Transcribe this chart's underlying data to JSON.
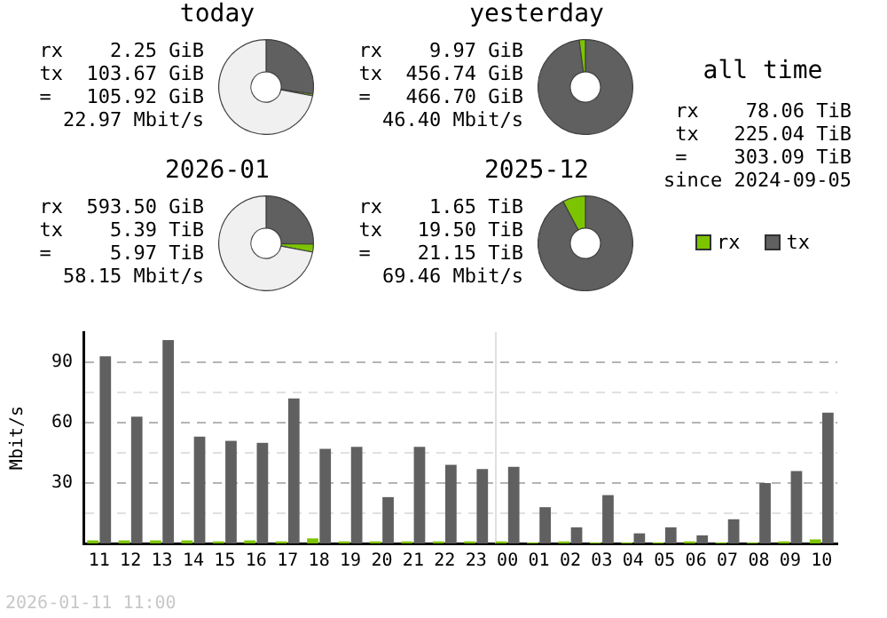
{
  "chart_data": [
    {
      "type": "donut",
      "title": "today",
      "categories": [
        null,
        null,
        null
      ],
      "values": [
        27.4,
        0.6,
        72
      ],
      "colors": [
        "#606060",
        "#7cc400",
        "#f0f0f0"
      ],
      "annotations": [
        "rx    2.25 GiB",
        "tx  103.67 GiB",
        "=   105.92 GiB",
        "22.97 Mbit/s"
      ]
    },
    {
      "type": "donut",
      "title": "yesterday",
      "categories": [
        null,
        null
      ],
      "values": [
        97.9,
        2.1
      ],
      "colors": [
        "#606060",
        "#7cc400"
      ],
      "annotations": [
        "rx    9.97 GiB",
        "tx  456.74 GiB",
        "=   466.70 GiB",
        "46.40 Mbit/s"
      ]
    },
    {
      "type": "donut",
      "title": "2026-01",
      "categories": [
        null,
        null,
        null
      ],
      "values": [
        25.3,
        2.7,
        72
      ],
      "colors": [
        "#606060",
        "#7cc400",
        "#f0f0f0"
      ],
      "annotations": [
        "rx  593.50 GiB",
        "tx    5.39 TiB",
        "=     5.97 TiB",
        "58.15 Mbit/s"
      ]
    },
    {
      "type": "donut",
      "title": "2025-12",
      "categories": [
        null,
        null
      ],
      "values": [
        92.2,
        7.8
      ],
      "colors": [
        "#606060",
        "#7cc400"
      ],
      "annotations": [
        "rx    1.65 TiB",
        "tx   19.50 TiB",
        "=    21.15 TiB",
        "69.46 Mbit/s"
      ]
    },
    {
      "type": "other",
      "title": "all time",
      "annotations": [
        "rx    78.06 TiB",
        "tx   225.04 TiB",
        "=    303.09 TiB",
        "since 2024-09-05"
      ]
    },
    {
      "type": "bar",
      "ylabel": "Mbit/s",
      "categories": [
        "11",
        "12",
        "13",
        "14",
        "15",
        "16",
        "17",
        "18",
        "19",
        "20",
        "21",
        "22",
        "23",
        "00",
        "01",
        "02",
        "03",
        "04",
        "05",
        "06",
        "07",
        "08",
        "09",
        "10"
      ],
      "series": [
        {
          "name": "rx",
          "color": "#7cc400",
          "values": [
            1.5,
            1.5,
            1.5,
            1.5,
            1,
            1.5,
            1,
            2.5,
            1,
            1,
            1,
            1,
            1,
            1,
            0.5,
            1,
            0.5,
            0.5,
            0.5,
            1,
            0.5,
            0.5,
            1,
            2
          ]
        },
        {
          "name": "tx",
          "color": "#606060",
          "values": [
            93,
            63,
            101,
            53,
            51,
            50,
            72,
            47,
            48,
            23,
            48,
            39,
            37,
            38,
            18,
            8,
            24,
            5,
            8,
            4,
            12,
            30,
            36,
            65
          ]
        }
      ],
      "ylim": [
        0,
        105
      ],
      "yticks": [
        {
          "value": 15,
          "label": null
        },
        30,
        {
          "value": 45,
          "label": null
        },
        60,
        {
          "value": 75,
          "label": null
        },
        90
      ],
      "grid": "y",
      "legend": "top right",
      "ref_lines": [
        {
          "axis": "x",
          "value": "00",
          "color": "#e0e0e0"
        }
      ],
      "annotations": [
        "2026-01-11 11:00"
      ]
    }
  ]
}
